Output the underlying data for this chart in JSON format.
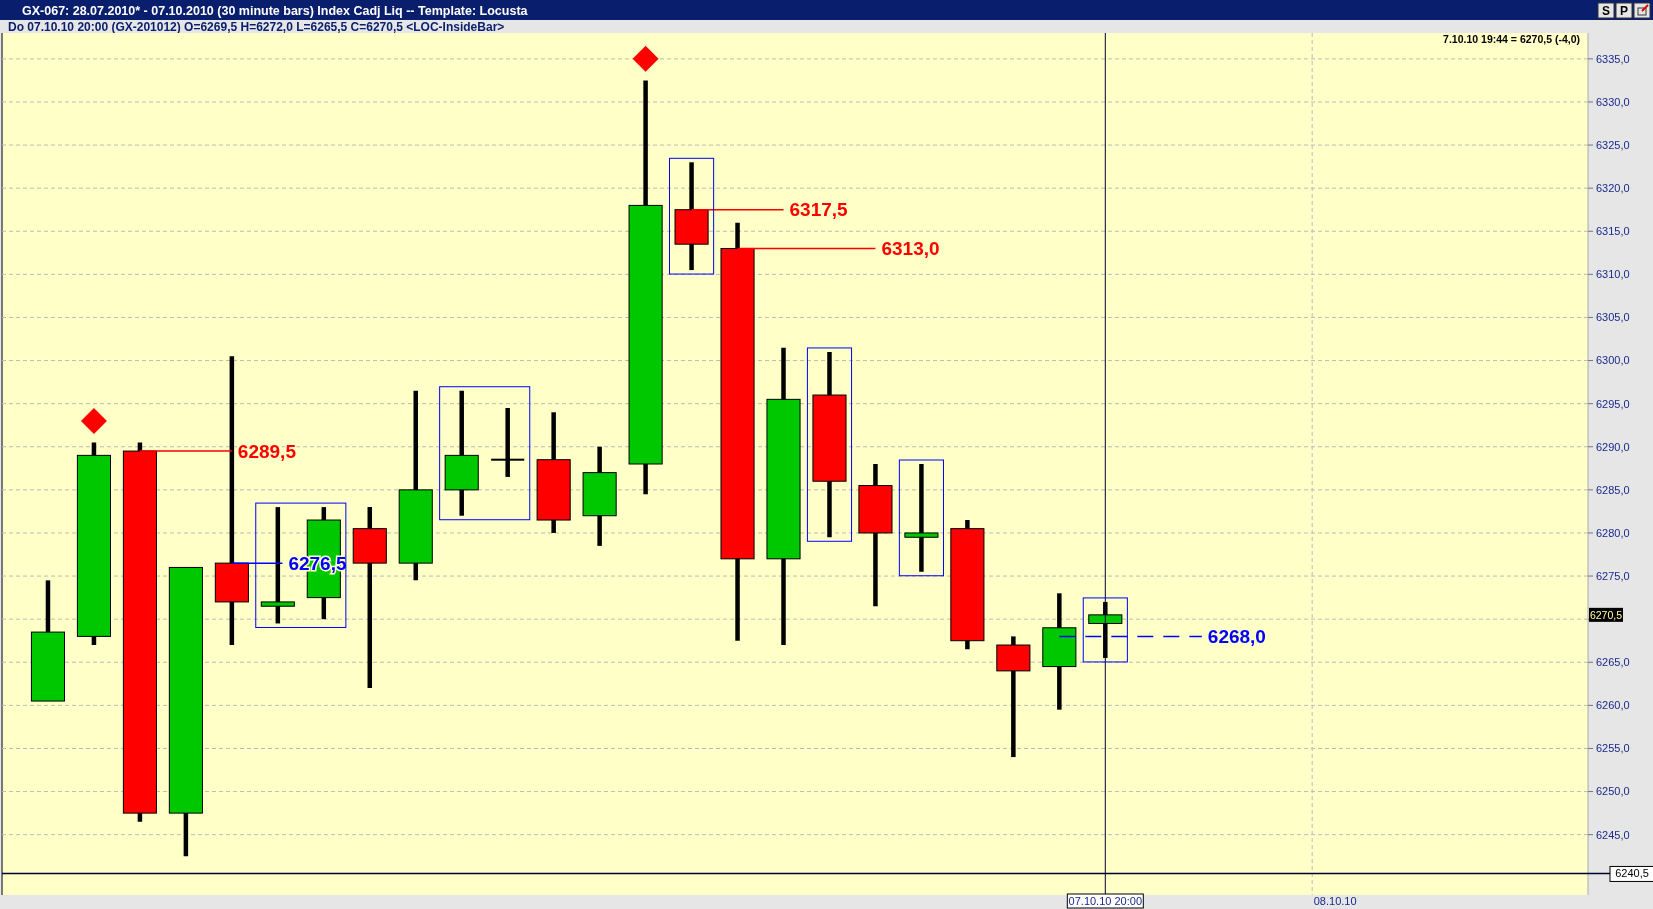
{
  "chart_data": {
    "type": "candlestick",
    "title": "GX-067:  28.07.2010* - 07.10.2010  (30 minute bars)   Index Cadj Liq  --  Template: Locusta",
    "subtitle": "Do  07.10.10 20:00 (GX-201012)  O=6269,5  H=6272,0  L=6265,5  C=6270,5  <LOC-InsideBar>",
    "categories": [
      null,
      null,
      null,
      null,
      null,
      null,
      null,
      null,
      null,
      null,
      null,
      null,
      null,
      null,
      null,
      null,
      null,
      null,
      null,
      null,
      null,
      null,
      null,
      "07.10.10 20:00",
      null,
      null,
      null,
      null,
      "08.10.10",
      null,
      null,
      null,
      null,
      null
    ],
    "ohlc": [
      [
        6260.5,
        6274.5,
        6260.5,
        6268.5
      ],
      [
        6268,
        6290.5,
        6267,
        6289
      ],
      [
        6289.5,
        6290.5,
        6246.5,
        6247.5
      ],
      [
        6247.5,
        6276,
        6242.5,
        6276
      ],
      [
        6276.5,
        6300.5,
        6267,
        6272
      ],
      [
        6271.5,
        6283,
        6269.5,
        6272
      ],
      [
        6272.5,
        6283,
        6270,
        6281.5
      ],
      [
        6280.5,
        6283,
        6262,
        6276.5
      ],
      [
        6276.5,
        6296.5,
        6274.5,
        6285
      ],
      [
        6285,
        6296.5,
        6282,
        6289
      ],
      [
        6288.5,
        6294.5,
        6286.5,
        6288.5
      ],
      [
        6288.5,
        6294,
        6280,
        6281.5
      ],
      [
        6282,
        6290,
        6278.5,
        6287
      ],
      [
        6288,
        6332.5,
        6284.5,
        6318
      ],
      [
        6317.5,
        6323,
        6310.5,
        6313.5
      ],
      [
        6313,
        6316,
        6267.5,
        6277
      ],
      [
        6277,
        6301.5,
        6267,
        6295.5
      ],
      [
        6296,
        6301,
        6279.5,
        6286
      ],
      [
        6285.5,
        6288,
        6271.5,
        6280
      ],
      [
        6279.5,
        6288,
        6275.5,
        6280
      ],
      [
        6280.5,
        6281.5,
        6266.5,
        6267.5
      ],
      [
        6267,
        6268,
        6254,
        6264
      ],
      [
        6264.5,
        6273,
        6259.5,
        6269
      ],
      [
        6269.5,
        6272,
        6265.5,
        6270.5
      ],
      null,
      null,
      null,
      null,
      null,
      null,
      null,
      null,
      null,
      null
    ],
    "colors": [
      "#00c800",
      "#00c800",
      "#ff0000",
      "#00c800",
      "#ff0000",
      "#00c800",
      "#00c800",
      "#ff0000",
      "#00c800",
      "#00c800",
      "#000000",
      "#ff0000",
      "#00c800",
      "#00c800",
      "#ff0000",
      "#ff0000",
      "#00c800",
      "#ff0000",
      "#ff0000",
      "#00c800",
      "#ff0000",
      "#ff0000",
      "#00c800",
      "#00c800",
      null,
      null,
      null,
      null,
      null,
      null,
      null,
      null,
      null,
      null
    ],
    "series": [
      {
        "type": "scatter",
        "marker": "diamond",
        "color": "#ff0000",
        "values": [
          null,
          6293,
          null,
          null,
          null,
          null,
          null,
          null,
          null,
          null,
          null,
          null,
          null,
          6335,
          null,
          null,
          null,
          null,
          null,
          null,
          null,
          null,
          null,
          null,
          null,
          null,
          null,
          null,
          null,
          null,
          null,
          null,
          null,
          null
        ]
      }
    ],
    "ylim": [
      6238,
      6338
    ],
    "yticks": [
      {
        "value": 6245,
        "label": "6245,0"
      },
      {
        "value": 6250,
        "label": "6250,0"
      },
      {
        "value": 6255,
        "label": "6255,0"
      },
      {
        "value": 6260,
        "label": "6260,0"
      },
      {
        "value": 6265,
        "label": "6265,0"
      },
      {
        "value": 6270,
        "label": null
      },
      {
        "value": 6275,
        "label": "6275,0"
      },
      {
        "value": 6280,
        "label": "6280,0"
      },
      {
        "value": 6285,
        "label": "6285,0"
      },
      {
        "value": 6290,
        "label": "6290,0"
      },
      {
        "value": 6295,
        "label": "6295,0"
      },
      {
        "value": 6300,
        "label": "6300,0"
      },
      {
        "value": 6305,
        "label": "6305,0"
      },
      {
        "value": 6310,
        "label": "6310,0"
      },
      {
        "value": 6315,
        "label": "6315,0"
      },
      {
        "value": 6320,
        "label": "6320,0"
      },
      {
        "value": 6325,
        "label": "6325,0"
      },
      {
        "value": 6330,
        "label": "6330,0"
      },
      {
        "value": 6335,
        "label": "6335,0"
      }
    ],
    "grid": true,
    "ref_lines": [
      {
        "axis": "x",
        "value": "07.10.10 20:00",
        "color": "#000033"
      },
      {
        "axis": "y",
        "value": 6240.5,
        "label": "6240,5",
        "color": "#000033"
      },
      {
        "axis": "y",
        "value": 6289.5,
        "label": "6289,5",
        "color": "#ff0000"
      },
      {
        "axis": "y",
        "value": 6276.5,
        "label": "6276,5",
        "color": "#0000ff"
      },
      {
        "axis": "y",
        "value": 6317.5,
        "label": "6317,5",
        "color": "#ff0000"
      },
      {
        "axis": "y",
        "value": 6313,
        "label": "6313,0",
        "color": "#ff0000"
      },
      {
        "axis": "y",
        "value": 6268,
        "label": "6268,0",
        "color": "#0000ff",
        "line_style": "dashed"
      }
    ],
    "annotations": [
      "7.10.10 19:44 = 6270,5 (-4,0)",
      "6270,5",
      "S",
      "P"
    ]
  }
}
